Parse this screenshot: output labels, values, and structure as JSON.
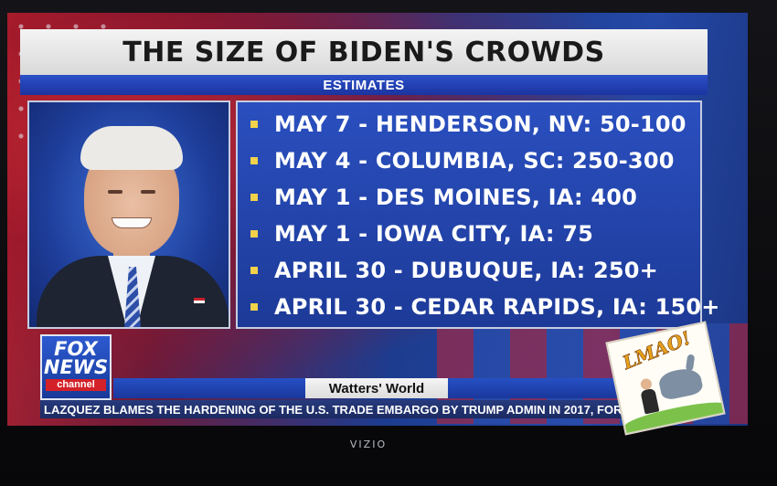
{
  "banner": {
    "title": "THE SIZE OF BIDEN'S CROWDS",
    "subtitle": "ESTIMATES"
  },
  "crowd_list": [
    "MAY 7 - HENDERSON, NV: 50-100",
    "MAY 4 - COLUMBIA, SC: 250-300",
    "MAY 1 - DES MOINES, IA: 400",
    "MAY 1 - IOWA CITY, IA: 75",
    "APRIL 30 - DUBUQUE, IA: 250+",
    "APRIL 30 - CEDAR RAPIDS, IA: 150+"
  ],
  "logo": {
    "line1": "FOX",
    "line2": "NEWS",
    "line3": "channel"
  },
  "show_name": "Watters' World",
  "ticker": "LAZQUEZ BLAMES THE HARDENING OF THE U.S. TRADE EMBARGO BY TRUMP ADMIN IN 2017, FOR",
  "sticker_text": "LMAO!",
  "tv_brand": "VIZIO",
  "colors": {
    "banner_blue": "#1b34a0",
    "bullet_yellow": "#f1d24a",
    "fox_red": "#d42028"
  }
}
